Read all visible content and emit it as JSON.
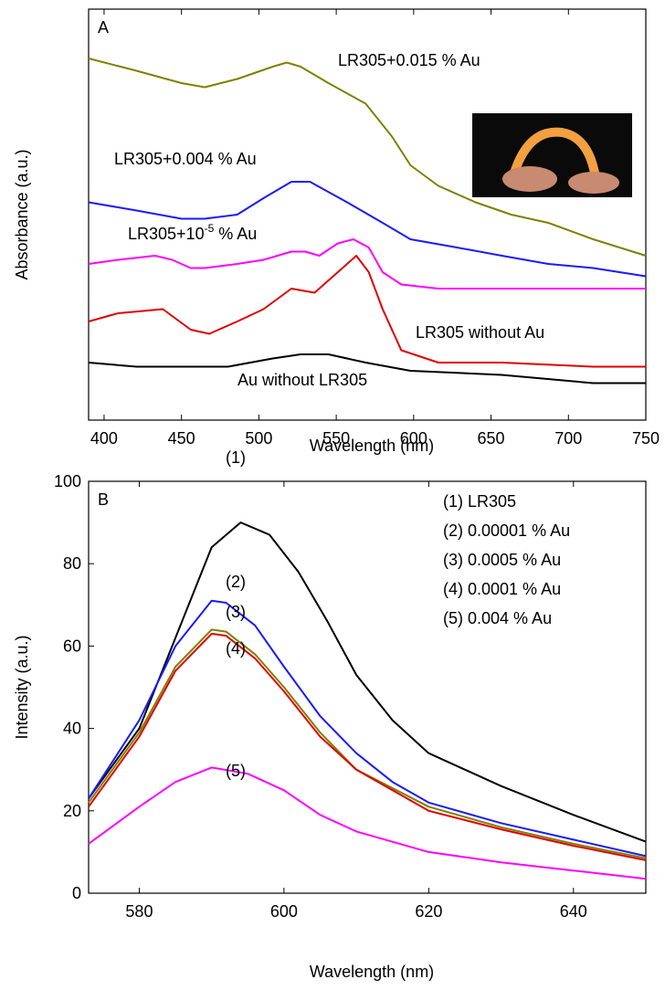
{
  "chart_data": [
    {
      "type": "line",
      "panel_label": "A",
      "xlabel": "Wavelength (nm)",
      "ylabel": "Absorbance (a.u.)",
      "xlim": [
        390,
        750
      ],
      "xticks": [
        400,
        450,
        500,
        550,
        600,
        650,
        700,
        750
      ],
      "ylim": [
        0,
        1
      ],
      "series": [
        {
          "name": "LR305+0.015 % Au",
          "color": "#808000",
          "x": [
            390,
            421,
            450,
            465,
            486,
            509,
            518,
            527,
            545,
            569,
            586,
            598,
            616,
            640,
            663,
            687,
            716,
            750
          ],
          "values": [
            0.88,
            0.85,
            0.82,
            0.81,
            0.83,
            0.86,
            0.87,
            0.86,
            0.82,
            0.77,
            0.69,
            0.62,
            0.57,
            0.53,
            0.5,
            0.48,
            0.44,
            0.4
          ]
        },
        {
          "name": "LR305+0.004 % Au",
          "color": "#1a1aff",
          "x": [
            390,
            421,
            450,
            465,
            486,
            503,
            521,
            533,
            557,
            580,
            598,
            628,
            657,
            687,
            716,
            750
          ],
          "values": [
            0.53,
            0.51,
            0.49,
            0.49,
            0.5,
            0.54,
            0.58,
            0.58,
            0.53,
            0.48,
            0.44,
            0.42,
            0.4,
            0.38,
            0.37,
            0.35
          ]
        },
        {
          "name": "LR305+10",
          "name_sup": "-5",
          "name_suffix": " % Au",
          "color": "#ff00ff",
          "x": [
            390,
            409,
            433,
            444,
            456,
            465,
            486,
            503,
            521,
            530,
            539,
            551,
            561,
            571,
            580,
            592,
            616,
            657,
            716,
            750
          ],
          "values": [
            0.38,
            0.39,
            0.4,
            0.39,
            0.37,
            0.37,
            0.38,
            0.39,
            0.41,
            0.41,
            0.4,
            0.43,
            0.44,
            0.42,
            0.36,
            0.33,
            0.32,
            0.32,
            0.32,
            0.32
          ]
        },
        {
          "name": "LR305 without  Au",
          "color": "#e00000",
          "x": [
            390,
            409,
            438,
            456,
            468,
            486,
            503,
            521,
            536,
            551,
            563,
            571,
            580,
            592,
            616,
            657,
            716,
            750
          ],
          "values": [
            0.24,
            0.26,
            0.27,
            0.22,
            0.21,
            0.24,
            0.27,
            0.32,
            0.31,
            0.36,
            0.4,
            0.36,
            0.27,
            0.17,
            0.14,
            0.14,
            0.13,
            0.13
          ]
        },
        {
          "name": "Au without LR305",
          "color": "#000000",
          "x": [
            390,
            421,
            450,
            480,
            509,
            527,
            545,
            569,
            598,
            657,
            716,
            750
          ],
          "values": [
            0.14,
            0.13,
            0.13,
            0.13,
            0.15,
            0.16,
            0.16,
            0.14,
            0.12,
            0.11,
            0.09,
            0.09
          ]
        }
      ]
    },
    {
      "type": "line",
      "panel_label": "B",
      "xlabel": "Wavelength (nm)",
      "ylabel": "Intensity (a.u.)",
      "xlim": [
        573,
        650
      ],
      "xticks": [
        580,
        600,
        620,
        640
      ],
      "ylim": [
        0,
        100
      ],
      "yticks": [
        0,
        20,
        40,
        60,
        80,
        100
      ],
      "series": [
        {
          "name": "(1) LR305",
          "tag": "(1)",
          "color": "#000000",
          "x": [
            573,
            580,
            585,
            590,
            594,
            598,
            602,
            606,
            610,
            615,
            620,
            630,
            640,
            650
          ],
          "values": [
            23,
            40,
            62,
            84,
            90,
            87,
            78,
            66,
            53,
            42,
            34,
            26,
            19,
            12.5
          ]
        },
        {
          "name": "(2) 0.00001 % Au",
          "tag": "(2)",
          "color": "#1a1aff",
          "x": [
            573,
            580,
            585,
            590,
            592,
            596,
            600,
            605,
            610,
            615,
            620,
            630,
            640,
            650
          ],
          "values": [
            23,
            42,
            60,
            71,
            70.5,
            65,
            55,
            43,
            34,
            27,
            22,
            17,
            13,
            9
          ]
        },
        {
          "name": "(3) 0.0005 % Au",
          "tag": "(3)",
          "color": "#808000",
          "x": [
            573,
            580,
            585,
            590,
            592,
            596,
            600,
            605,
            610,
            620,
            630,
            640,
            650
          ],
          "values": [
            22,
            39,
            55,
            64,
            63.5,
            58,
            50,
            39,
            30,
            21,
            16,
            12,
            8.5
          ]
        },
        {
          "name": "(4) 0.0001 % Au",
          "tag": "(4)",
          "color": "#e00000",
          "x": [
            573,
            580,
            585,
            590,
            592,
            596,
            600,
            605,
            610,
            620,
            630,
            640,
            650
          ],
          "values": [
            21,
            38,
            54,
            63,
            62.5,
            57,
            49,
            38,
            30,
            20,
            15.5,
            11.5,
            8
          ]
        },
        {
          "name": "(5) 0.004 % Au",
          "tag": "(5)",
          "color": "#ff00ff",
          "x": [
            573,
            580,
            585,
            590,
            595,
            600,
            605,
            610,
            620,
            630,
            640,
            650
          ],
          "values": [
            12,
            21,
            27,
            30.5,
            29,
            25,
            19,
            15,
            10,
            7.5,
            5.5,
            3.5
          ]
        }
      ]
    }
  ]
}
